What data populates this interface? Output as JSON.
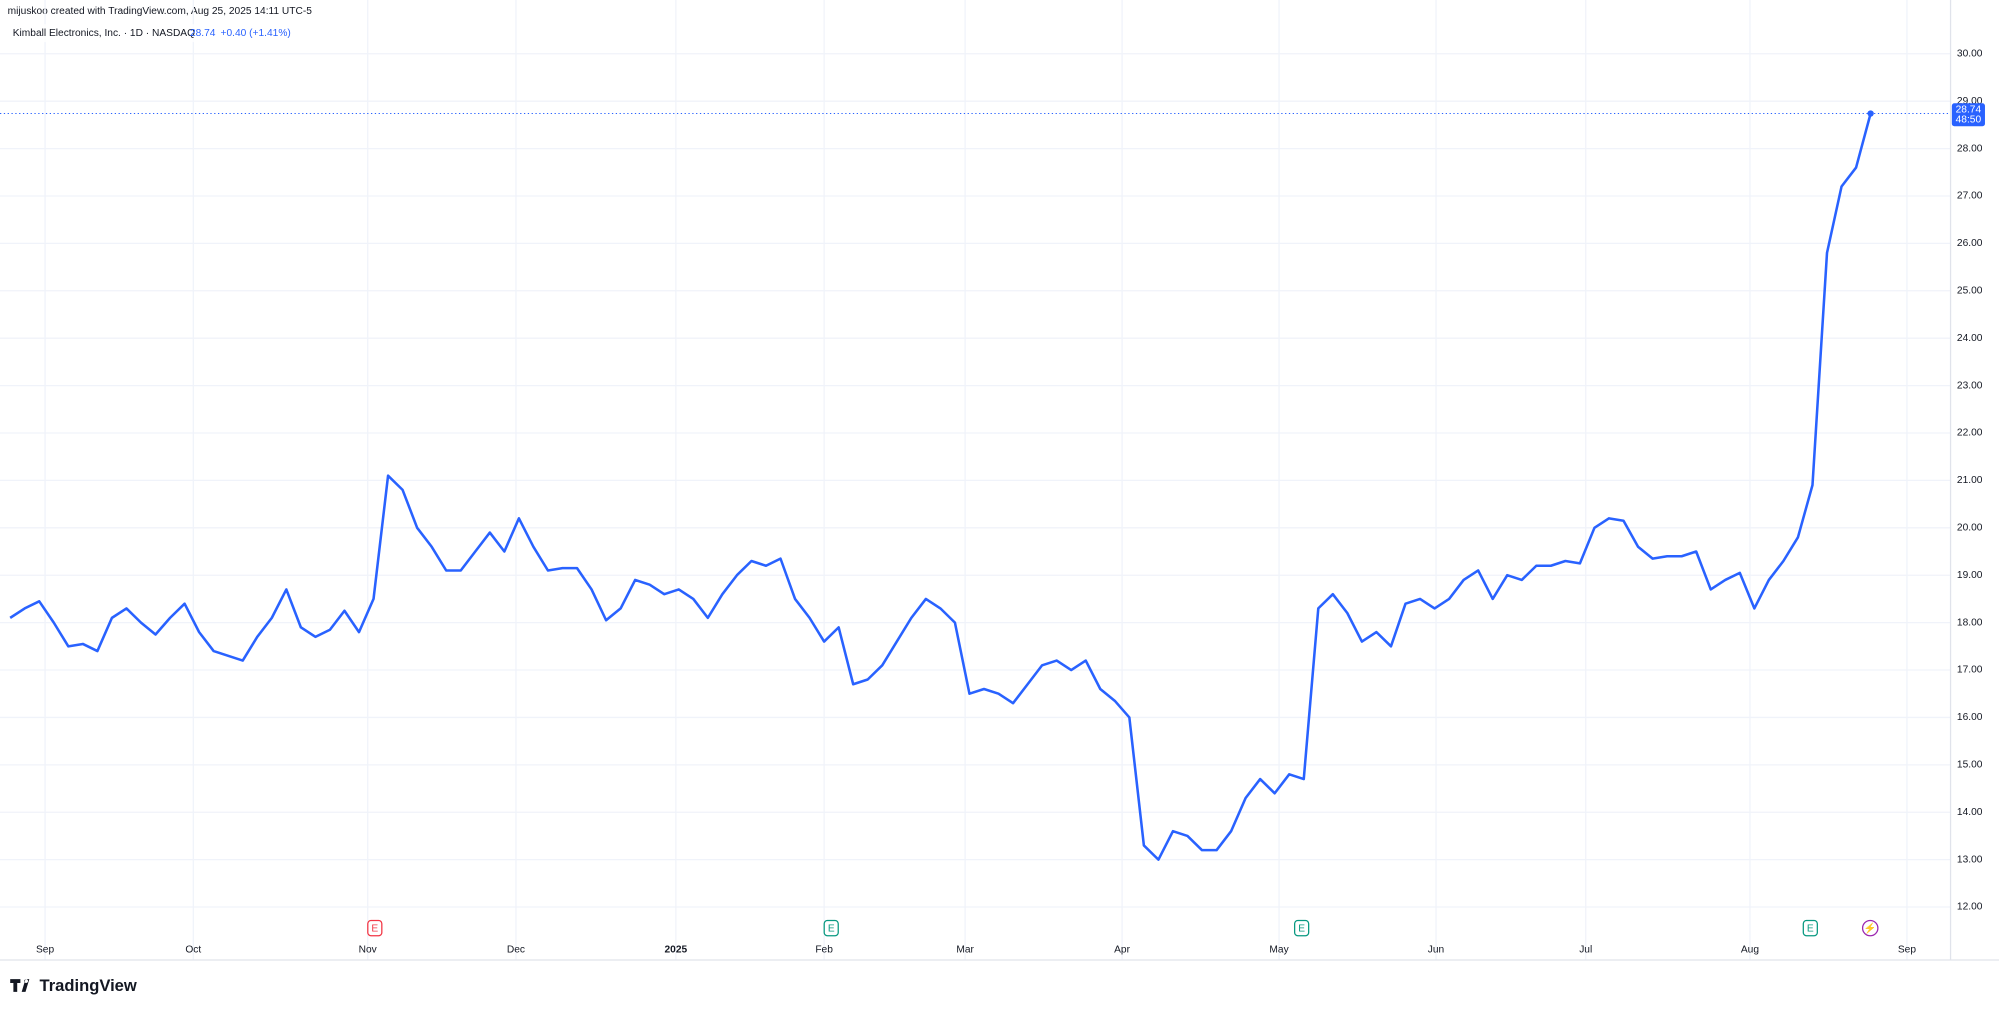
{
  "header": {
    "credit": "mijuskoo created with TradingView.com, Aug 25, 2025 14:11 UTC-5",
    "brand": "TradingView"
  },
  "chart_data": {
    "type": "line",
    "title": "Kimball Electronics, Inc. · 1D · NASDAQ",
    "last_price": "28.74",
    "change": "+0.40 (+1.41%)",
    "countdown": "48:50",
    "color": "#2962ff",
    "grid": true,
    "values": [
      18.1,
      18.3,
      18.45,
      18.0,
      17.5,
      17.55,
      17.4,
      18.1,
      18.3,
      18.0,
      17.75,
      18.1,
      18.4,
      17.8,
      17.4,
      17.3,
      17.2,
      17.7,
      18.1,
      18.7,
      17.9,
      17.7,
      17.85,
      18.25,
      17.8,
      18.5,
      21.1,
      20.8,
      20.0,
      19.6,
      19.1,
      19.1,
      19.5,
      19.9,
      19.5,
      20.2,
      19.6,
      19.1,
      19.15,
      19.15,
      18.7,
      18.05,
      18.3,
      18.9,
      18.8,
      18.6,
      18.7,
      18.5,
      18.1,
      18.6,
      19.0,
      19.3,
      19.2,
      19.35,
      18.5,
      18.1,
      17.6,
      17.9,
      16.7,
      16.8,
      17.1,
      17.6,
      18.1,
      18.5,
      18.3,
      18.0,
      16.5,
      16.6,
      16.5,
      16.3,
      16.7,
      17.1,
      17.2,
      17.0,
      17.2,
      16.6,
      16.35,
      16.0,
      13.3,
      13.0,
      13.6,
      13.5,
      13.2,
      13.2,
      13.6,
      14.3,
      14.7,
      14.4,
      14.8,
      14.7,
      18.3,
      18.6,
      18.2,
      17.6,
      17.8,
      17.5,
      18.4,
      18.5,
      18.3,
      18.5,
      18.9,
      19.1,
      18.5,
      19.0,
      18.9,
      19.2,
      19.2,
      19.3,
      19.25,
      20.0,
      20.2,
      20.15,
      19.6,
      19.35,
      19.4,
      19.4,
      19.5,
      18.7,
      18.9,
      19.05,
      18.3,
      18.9,
      19.3,
      19.8,
      20.9,
      25.8,
      27.2,
      27.6,
      28.74
    ],
    "xlim": [
      -0.7,
      133.5
    ],
    "xticks": [
      {
        "value": 2.4,
        "label": "Sep"
      },
      {
        "value": 12.6,
        "label": "Oct"
      },
      {
        "value": 24.6,
        "label": "Nov"
      },
      {
        "value": 34.8,
        "label": "Dec"
      },
      {
        "value": 45.8,
        "label": "2025"
      },
      {
        "value": 56,
        "label": "Feb"
      },
      {
        "value": 65.7,
        "label": "Mar"
      },
      {
        "value": 76.5,
        "label": "Apr"
      },
      {
        "value": 87.3,
        "label": "May"
      },
      {
        "value": 98.1,
        "label": "Jun"
      },
      {
        "value": 108.4,
        "label": "Jul"
      },
      {
        "value": 119.7,
        "label": "Aug"
      },
      {
        "value": 130.5,
        "label": "Sep"
      }
    ],
    "ylim": [
      10.91,
      30.65
    ],
    "yticks": [
      {
        "value": 12,
        "label": "12.00"
      },
      {
        "value": 13,
        "label": "13.00"
      },
      {
        "value": 14,
        "label": "14.00"
      },
      {
        "value": 15,
        "label": "15.00"
      },
      {
        "value": 16,
        "label": "16.00"
      },
      {
        "value": 17,
        "label": "17.00"
      },
      {
        "value": 18,
        "label": "18.00"
      },
      {
        "value": 19,
        "label": "19.00"
      },
      {
        "value": 20,
        "label": "20.00"
      },
      {
        "value": 21,
        "label": "21.00"
      },
      {
        "value": 22,
        "label": "22.00"
      },
      {
        "value": 23,
        "label": "23.00"
      },
      {
        "value": 24,
        "label": "24.00"
      },
      {
        "value": 25,
        "label": "25.00"
      },
      {
        "value": 26,
        "label": "26.00"
      },
      {
        "value": 27,
        "label": "27.00"
      },
      {
        "value": 28,
        "label": "28.00"
      },
      {
        "value": 29,
        "label": "29.00"
      },
      {
        "value": 30,
        "label": "30.00"
      }
    ],
    "events": [
      {
        "label": "E",
        "color": "#f23645"
      },
      {
        "label": "E",
        "color": "#089981"
      },
      {
        "label": "E",
        "color": "#089981"
      },
      {
        "label": "E",
        "color": "#089981"
      },
      {
        "label": "⚡",
        "color": "#9c27b0"
      }
    ]
  }
}
